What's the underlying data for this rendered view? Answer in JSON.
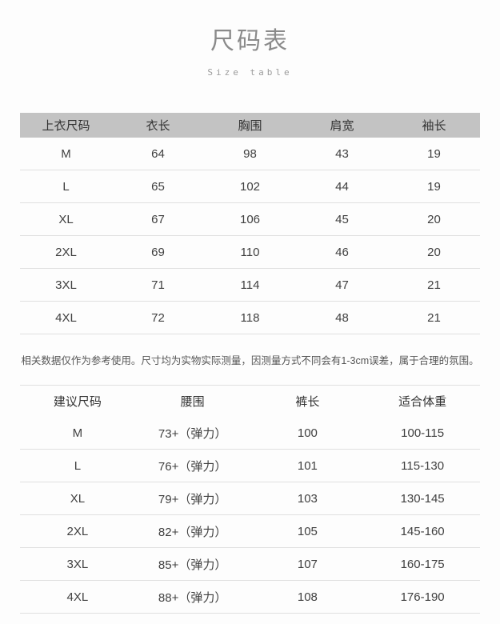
{
  "page": {
    "title": "尺码表",
    "subtitle": "Size table",
    "note": "相关数据仅作为参考使用。尺寸均为实物实际测量，因测量方式不同会有1-3cm误差，属于合理的氛围。"
  },
  "colors": {
    "header_band_bg": "#c3c3c3",
    "row_divider": "#e0e0e0",
    "title_text": "#8a8a8a",
    "subtitle_text": "#9b9b9b",
    "body_text": "#404040",
    "note_text": "#565656",
    "background": "#fdfdfd"
  },
  "top_table": {
    "headers": [
      "上衣尺码",
      "衣长",
      "胸围",
      "肩宽",
      "袖长"
    ],
    "rows": [
      [
        "M",
        "64",
        "98",
        "43",
        "19"
      ],
      [
        "L",
        "65",
        "102",
        "44",
        "19"
      ],
      [
        "XL",
        "67",
        "106",
        "45",
        "20"
      ],
      [
        "2XL",
        "69",
        "110",
        "46",
        "20"
      ],
      [
        "3XL",
        "71",
        "114",
        "47",
        "21"
      ],
      [
        "4XL",
        "72",
        "118",
        "48",
        "21"
      ]
    ]
  },
  "bottom_table": {
    "headers": [
      "建议尺码",
      "腰围",
      "裤长",
      "适合体重"
    ],
    "rows": [
      [
        "M",
        "73+（弹力）",
        "100",
        "100-115"
      ],
      [
        "L",
        "76+（弹力）",
        "101",
        "115-130"
      ],
      [
        "XL",
        "79+（弹力）",
        "103",
        "130-145"
      ],
      [
        "2XL",
        "82+（弹力）",
        "105",
        "145-160"
      ],
      [
        "3XL",
        "85+（弹力）",
        "107",
        "160-175"
      ],
      [
        "4XL",
        "88+（弹力）",
        "108",
        "176-190"
      ]
    ]
  }
}
